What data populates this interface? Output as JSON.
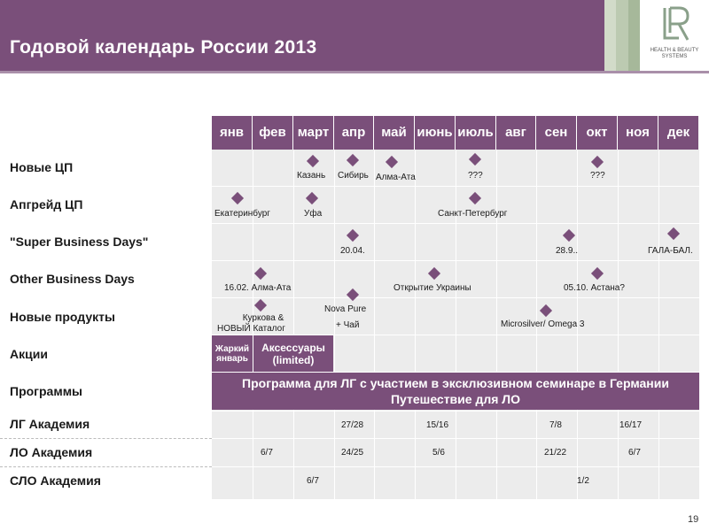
{
  "title": "Годовой календарь России 2013",
  "brand": {
    "logo_letters": "LR",
    "tagline_1": "HEALTH & BEAUTY",
    "tagline_2": "SYSTEMS"
  },
  "colors": {
    "accent": "#7a4f7a",
    "cell": "#ececec",
    "logo_green": "#8aa08a"
  },
  "months": [
    "янв",
    "фев",
    "март",
    "апр",
    "май",
    "июнь",
    "июль",
    "авг",
    "сен",
    "окт",
    "ноя",
    "дек"
  ],
  "rows": {
    "new_cp": "Новые ЦП",
    "upgrade_cp": "Апгрейд ЦП",
    "super_days": "\"Super Business Days\"",
    "other_days": "Other Business Days",
    "new_products": "Новые продукты",
    "promotions": "Акции",
    "programs": "Программы",
    "lg_academy": "ЛГ Академия",
    "lo_academy": "ЛО Академия",
    "slo_academy": "СЛО Академия"
  },
  "events": {
    "kazan": "Казань",
    "siberia": "Сибирь",
    "almaty1": "Алма-Ата",
    "q_jul": "???",
    "q_oct": "???",
    "ekb": "Екатеринбург",
    "ufa": "Уфа",
    "spb": "Санкт-Петербург",
    "sbd_apr": "20.04.",
    "sbd_sep": "28.9..",
    "gala": "ГАЛА-БАЛ.",
    "obd_feb": "16.02.  Алма-Ата",
    "obd_ua": "Открытие Украины",
    "obd_oct": "05.10.  Астана?",
    "np_feb_1": "Куркова &",
    "np_feb_2": "НОВЫЙ  Каталог",
    "np_apr_1": "Nova Pure",
    "np_apr_2": "+ Чай",
    "np_aug": "Microsilver/ Omega  3"
  },
  "promos": {
    "jan": "Жаркий январь",
    "feb_mar": "Аксессуары (limited)"
  },
  "program": {
    "line1": "Программа для ЛГ с участием в эксклюзивном семинаре в Германии",
    "line2": "Путешествие для ЛО"
  },
  "academy": {
    "lg": {
      "apr": "27/28",
      "jun": "15/16",
      "sep": "7/8",
      "nov": "16/17"
    },
    "lo": {
      "feb": "6/7",
      "apr": "24/25",
      "jun": "5/6",
      "sep": "21/22",
      "nov": "6/7"
    },
    "slo": {
      "mar": "6/7",
      "oct": "1/2"
    }
  },
  "page_number": "19"
}
